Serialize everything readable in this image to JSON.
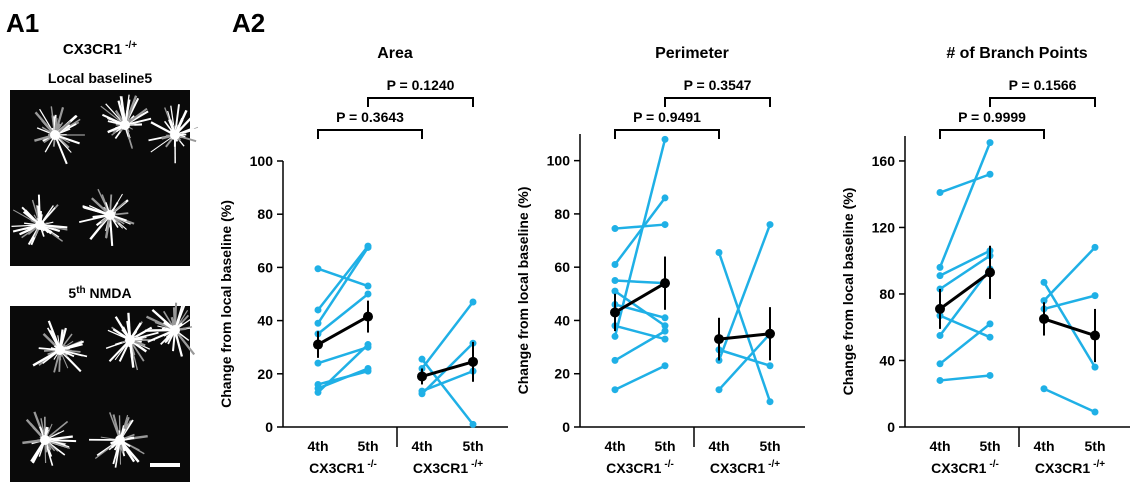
{
  "panel_a1": {
    "label": "A1",
    "genotype": "CX3CR1",
    "genotype_sup": "-/+",
    "image1_title": "Local baseline5",
    "image2_title": {
      "base": "5",
      "sup": "th",
      "rest": " NMDA"
    }
  },
  "panel_a2": {
    "label": "A2"
  },
  "chart_data": [
    {
      "type": "paired",
      "title": "Area",
      "ylabel": "Change from local baseline (%)",
      "ylim": [
        0,
        100
      ],
      "yticks": [
        0,
        20,
        40,
        60,
        80,
        100
      ],
      "color": "#1fb0e6",
      "mean_color": "#000000",
      "categories": [
        "4th",
        "5th"
      ],
      "groups": [
        {
          "label": "CX3CR1",
          "sup": "-/-",
          "pairs": [
            [
              13,
              31
            ],
            [
              14.5,
              22
            ],
            [
              16,
              21
            ],
            [
              24,
              30
            ],
            [
              35,
              50
            ],
            [
              39,
              67.5
            ],
            [
              44,
              68
            ],
            [
              59.5,
              53
            ]
          ],
          "mean": [
            31,
            41.5
          ],
          "error": [
            5,
            6
          ]
        },
        {
          "label": "CX3CR1",
          "sup": "-/+",
          "pairs": [
            [
              25.5,
              1
            ],
            [
              22,
              47
            ],
            [
              13.5,
              21
            ],
            [
              12.5,
              31.5
            ]
          ],
          "mean": [
            19,
            24.5
          ],
          "error": [
            3,
            7.5
          ]
        }
      ],
      "comparisons": [
        {
          "label": "P = 0.3643",
          "between": [
            0,
            2
          ]
        },
        {
          "label": "P = 0.1240",
          "between": [
            1,
            3
          ]
        }
      ]
    },
    {
      "type": "paired",
      "title": "Perimeter",
      "ylabel": "Change from local baseline (%)",
      "ylim": [
        0,
        110
      ],
      "yticks": [
        0,
        20,
        40,
        60,
        80,
        100
      ],
      "color": "#1fb0e6",
      "mean_color": "#000000",
      "categories": [
        "4th",
        "5th"
      ],
      "groups": [
        {
          "label": "CX3CR1",
          "sup": "-/-",
          "pairs": [
            [
              14,
              23
            ],
            [
              25,
              36
            ],
            [
              34,
              108
            ],
            [
              38,
              33
            ],
            [
              46,
              41
            ],
            [
              51,
              38
            ],
            [
              55,
              54
            ],
            [
              61,
              86
            ],
            [
              74.5,
              76
            ]
          ],
          "mean": [
            43,
            54
          ],
          "error": [
            7,
            10
          ]
        },
        {
          "label": "CX3CR1",
          "sup": "-/+",
          "pairs": [
            [
              14,
              35
            ],
            [
              25,
              76
            ],
            [
              29,
              23
            ],
            [
              65.5,
              9.5
            ]
          ],
          "mean": [
            33,
            35
          ],
          "error": [
            8,
            10
          ]
        }
      ],
      "comparisons": [
        {
          "label": "P = 0.9491",
          "between": [
            0,
            2
          ]
        },
        {
          "label": "P = 0.3547",
          "between": [
            1,
            3
          ]
        }
      ]
    },
    {
      "type": "paired",
      "title": "# of Branch Points",
      "ylabel": "Change from local baseline (%)",
      "ylim": [
        0,
        175
      ],
      "yticks": [
        0,
        40,
        80,
        120,
        160
      ],
      "color": "#1fb0e6",
      "mean_color": "#000000",
      "categories": [
        "4th",
        "5th"
      ],
      "groups": [
        {
          "label": "CX3CR1",
          "sup": "-/-",
          "pairs": [
            [
              28,
              31
            ],
            [
              38,
              62
            ],
            [
              55,
              95
            ],
            [
              67,
              54
            ],
            [
              83,
              103
            ],
            [
              91,
              106
            ],
            [
              96,
              171
            ],
            [
              141,
              152
            ]
          ],
          "mean": [
            71,
            93
          ],
          "error": [
            12,
            16
          ]
        },
        {
          "label": "CX3CR1",
          "sup": "-/+",
          "pairs": [
            [
              23,
              9
            ],
            [
              71,
              79
            ],
            [
              76,
              108
            ],
            [
              87,
              36
            ]
          ],
          "mean": [
            65,
            55
          ],
          "error": [
            10,
            16
          ]
        }
      ],
      "comparisons": [
        {
          "label": "P = 0.9999",
          "between": [
            0,
            2
          ]
        },
        {
          "label": "P = 0.1566",
          "between": [
            1,
            3
          ]
        }
      ]
    }
  ]
}
